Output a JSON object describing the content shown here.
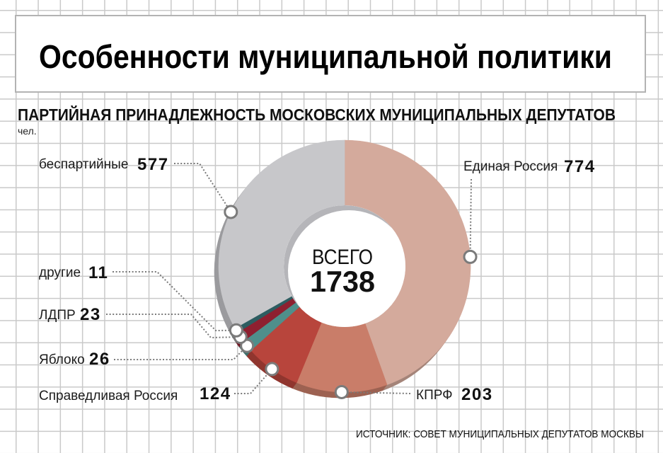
{
  "header": {
    "title": "Особенности муниципальной политики"
  },
  "chart_data": {
    "type": "pie",
    "donut": true,
    "title": "ПАРТИЙНАЯ ПРИНАДЛЕЖНОСТЬ МОСКОВСКИХ МУНИЦИПАЛЬНЫХ ДЕПУТАТОВ",
    "unit": "чел.",
    "center_label": "ВСЕГО",
    "total": 1738,
    "categories": [
      "Единая Россия",
      "КПРФ",
      "Справедливая Россия",
      "Яблоко",
      "ЛДПР",
      "другие",
      "беспартийные"
    ],
    "values": [
      774,
      203,
      124,
      26,
      23,
      11,
      577
    ],
    "colors": [
      "#d4aa9c",
      "#c97d69",
      "#b8453c",
      "#4f8f8b",
      "#8e2030",
      "#2d5d61",
      "#c7c7ca"
    ]
  },
  "source": "ИСТОЧНИК: СОВЕТ МУНИЦИПАЛЬНЫХ ДЕПУТАТОВ МОСКВЫ"
}
